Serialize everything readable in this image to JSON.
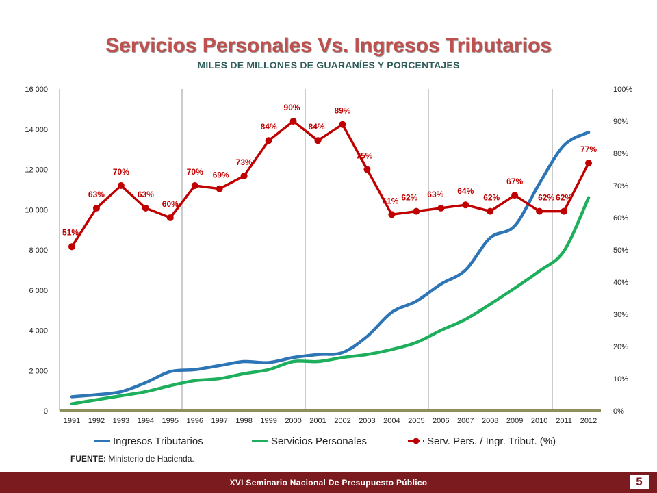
{
  "header": {
    "title": "Servicios Personales Vs. Ingresos Tributarios",
    "subtitle": "MILES DE MILLONES DE GUARANÍES Y PORCENTAJES"
  },
  "chart_data": {
    "type": "line",
    "categories": [
      "1991",
      "1992",
      "1993",
      "1994",
      "1995",
      "1996",
      "1997",
      "1998",
      "1999",
      "2000",
      "2001",
      "2002",
      "2003",
      "2004",
      "2005",
      "2006",
      "2007",
      "2008",
      "2009",
      "2010",
      "2011",
      "2012"
    ],
    "y_left": {
      "ylim": [
        0,
        16000
      ],
      "ticks": [
        "0",
        "2 000",
        "4 000",
        "6 000",
        "8 000",
        "10 000",
        "12 000",
        "14 000",
        "16 000"
      ]
    },
    "y_right": {
      "ylim": [
        0,
        100
      ],
      "ticks": [
        "0%",
        "10%",
        "20%",
        "30%",
        "40%",
        "50%",
        "60%",
        "70%",
        "80%",
        "90%",
        "100%"
      ]
    },
    "series": [
      {
        "name": "Ingresos Tributarios",
        "axis": "left",
        "color": "#2E75B6",
        "values": [
          700,
          800,
          950,
          1400,
          1950,
          2050,
          2250,
          2450,
          2400,
          2650,
          2800,
          2900,
          3700,
          4900,
          5450,
          6300,
          7000,
          8600,
          9200,
          11300,
          13200,
          13850
        ]
      },
      {
        "name": "Servicios Personales",
        "axis": "left",
        "color": "#1EAF5C",
        "values": [
          350,
          550,
          750,
          950,
          1250,
          1500,
          1600,
          1850,
          2050,
          2450,
          2450,
          2650,
          2800,
          3050,
          3400,
          4000,
          4550,
          5300,
          6100,
          6950,
          7950,
          10600
        ]
      },
      {
        "name": "Serv. Pers. / Ingr. Tribut. (%)",
        "axis": "right",
        "color": "#C00000",
        "values": [
          51,
          63,
          70,
          63,
          60,
          70,
          69,
          73,
          84,
          90,
          84,
          89,
          75,
          61,
          62,
          63,
          64,
          62,
          67,
          62,
          62,
          77
        ],
        "labels": [
          "51%",
          "63%",
          "70%",
          "63%",
          "60%",
          "70%",
          "69%",
          "73%",
          "84%",
          "90%",
          "84%",
          "89%",
          "75%",
          "61%",
          "62%",
          "63%",
          "64%",
          "62%",
          "67%",
          "62%",
          "62%",
          "77%"
        ]
      }
    ],
    "grid": "vertical separators",
    "legend_placement": "bottom"
  },
  "source": {
    "label": "FUENTE:",
    "text": " Ministerio de Hacienda."
  },
  "footer": {
    "text": "XVI Seminario Nacional De Presupuesto Público",
    "page_number": "5"
  }
}
